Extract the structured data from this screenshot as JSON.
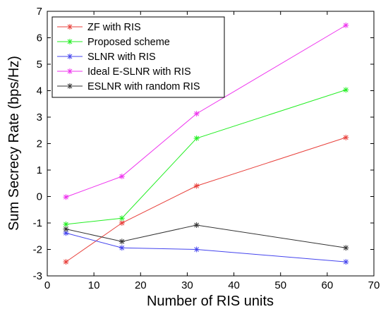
{
  "chart_data": {
    "type": "line",
    "title": "",
    "xlabel": "Number of RIS units",
    "ylabel": "Sum Secrecy Rate (bps/Hz)",
    "xlim": [
      0,
      70
    ],
    "ylim": [
      -3,
      7
    ],
    "xticks": [
      "0",
      "10",
      "20",
      "30",
      "40",
      "50",
      "60",
      "70"
    ],
    "yticks": [
      "-3",
      "-2",
      "-1",
      "0",
      "1",
      "2",
      "3",
      "4",
      "5",
      "6",
      "7"
    ],
    "grid": false,
    "legend_position": "top-left",
    "x": [
      4,
      16,
      32,
      64
    ],
    "series": [
      {
        "name": "ZF with RIS",
        "color": "#e8413c",
        "marker": "asterisk",
        "values": [
          -2.47,
          -1.0,
          0.4,
          2.23
        ]
      },
      {
        "name": "Proposed scheme",
        "color": "#22ee22",
        "marker": "asterisk",
        "values": [
          -1.05,
          -0.82,
          2.2,
          4.03
        ]
      },
      {
        "name": "SLNR with RIS",
        "color": "#4444ee",
        "marker": "asterisk",
        "values": [
          -1.38,
          -1.94,
          -2.0,
          -2.47
        ]
      },
      {
        "name": "Ideal E-SLNR with RIS",
        "color": "#ee33ee",
        "marker": "asterisk",
        "values": [
          -0.02,
          0.76,
          3.13,
          6.47
        ]
      },
      {
        "name": "ESLNR with random RIS",
        "color": "#333333",
        "marker": "asterisk",
        "values": [
          -1.23,
          -1.7,
          -1.08,
          -1.94
        ]
      }
    ]
  }
}
